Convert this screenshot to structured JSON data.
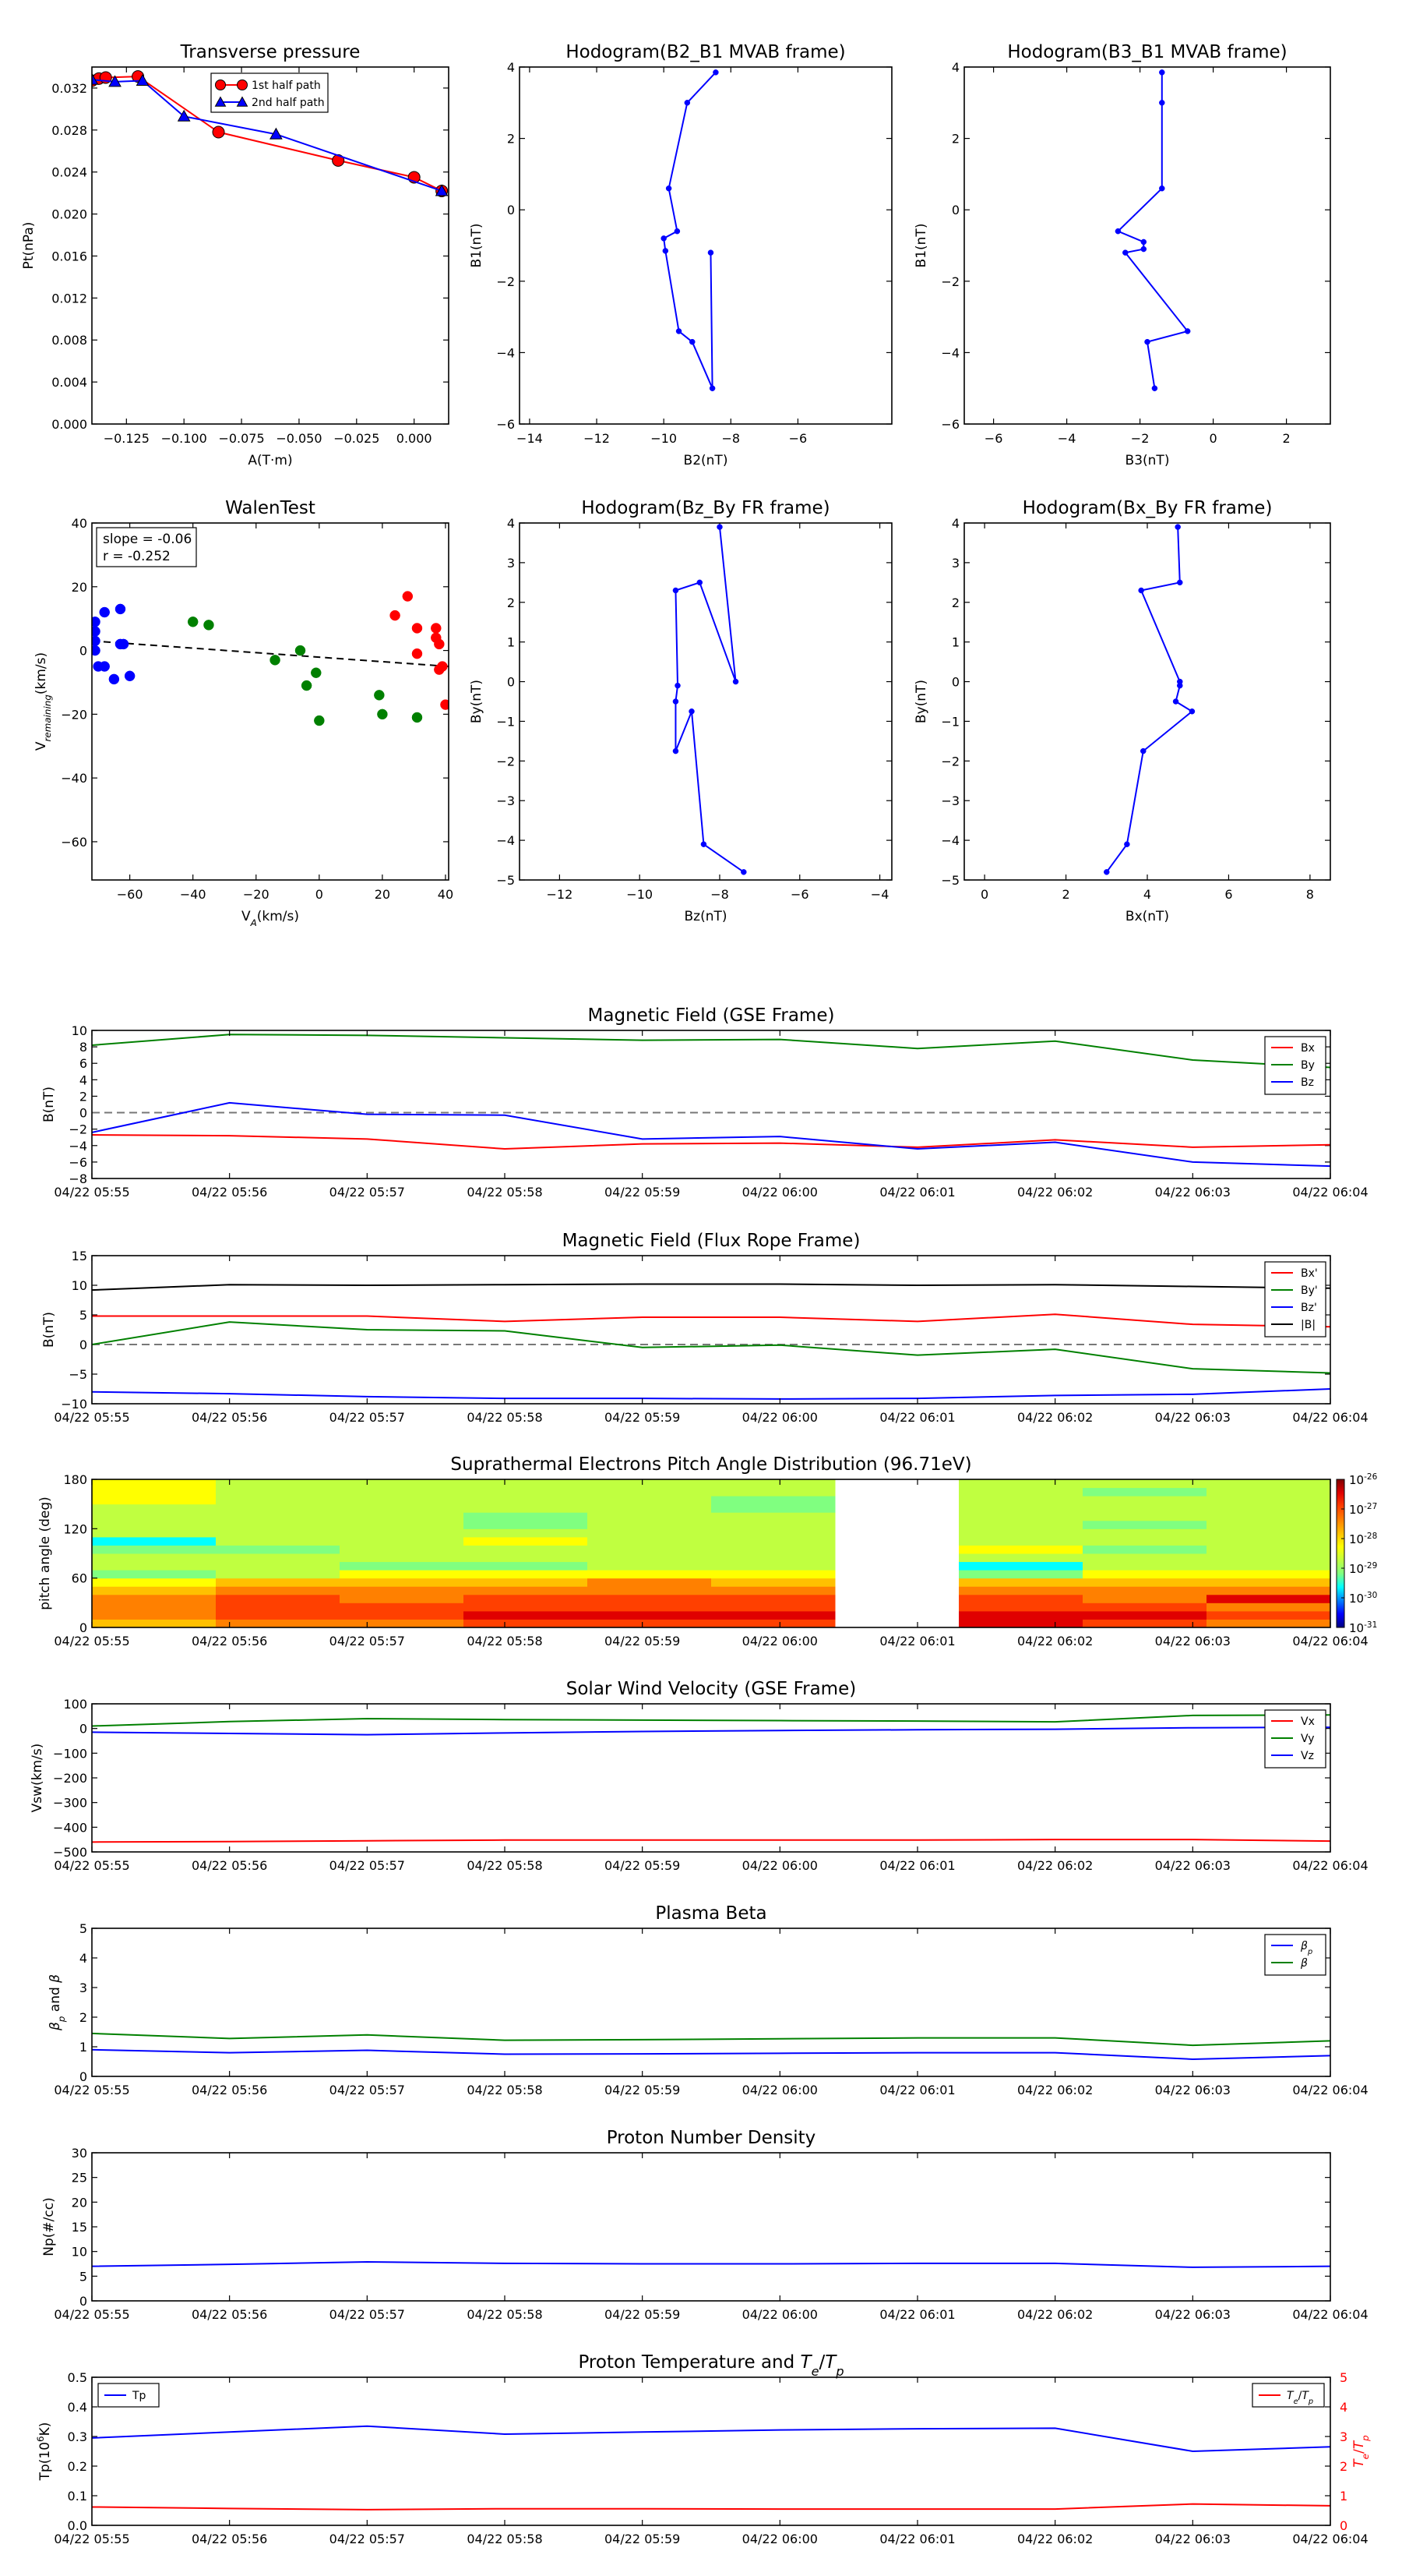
{
  "chart_data": [
    {
      "id": "transverse_pressure",
      "type": "line",
      "title": "Transverse pressure",
      "xlabel": "A(T·m)",
      "ylabel": "Pt(nPa)",
      "xlim": [
        -0.14,
        0.015
      ],
      "ylim": [
        0,
        0.034
      ],
      "xticks": [
        -0.125,
        -0.1,
        -0.075,
        -0.05,
        -0.025,
        0.0
      ],
      "xtick_labels": [
        "−0.125",
        "−0.100",
        "−0.075",
        "−0.050",
        "−0.025",
        "0.000"
      ],
      "yticks": [
        0,
        0.004,
        0.008,
        0.012,
        0.016,
        0.02,
        0.024,
        0.028,
        0.032
      ],
      "ytick_labels": [
        "0.000",
        "0.004",
        "0.008",
        "0.012",
        "0.016",
        "0.020",
        "0.024",
        "0.028",
        "0.032"
      ],
      "legend_position": "top-center",
      "series": [
        {
          "name": "1st half path",
          "color": "#ff0000",
          "marker": "circle",
          "x": [
            -0.14,
            -0.137,
            -0.134,
            -0.12,
            -0.085,
            -0.033,
            0.0,
            0.012
          ],
          "y": [
            0.0327,
            0.0329,
            0.033,
            0.0331,
            0.0278,
            0.0251,
            0.0235,
            0.0222
          ]
        },
        {
          "name": "2nd half path",
          "color": "#0000ff",
          "marker": "triangle",
          "x": [
            -0.14,
            -0.13,
            -0.118,
            -0.1,
            -0.06,
            0.012
          ],
          "y": [
            0.0328,
            0.0326,
            0.0327,
            0.0293,
            0.0276,
            0.0222
          ]
        }
      ]
    },
    {
      "id": "hodogram_b2_b1",
      "type": "line",
      "title": "Hodogram(B2_B1 MVAB frame)",
      "xlabel": "B2(nT)",
      "ylabel": "B1(nT)",
      "xlim": [
        -14.3,
        -3.2
      ],
      "ylim": [
        -6,
        4
      ],
      "xticks": [
        -14,
        -12,
        -10,
        -8,
        -6
      ],
      "yticks": [
        -6,
        -4,
        -2,
        0,
        2,
        4
      ],
      "series": [
        {
          "color": "#0000ff",
          "x": [
            -8.45,
            -9.3,
            -9.85,
            -9.6,
            -10.0,
            -9.95,
            -9.55,
            -9.15,
            -8.55,
            -8.6
          ],
          "y": [
            3.85,
            3.0,
            0.6,
            -0.6,
            -0.8,
            -1.15,
            -3.4,
            -3.7,
            -5.0,
            -1.2
          ]
        }
      ]
    },
    {
      "id": "hodogram_b3_b1",
      "type": "line",
      "title": "Hodogram(B3_B1 MVAB frame)",
      "xlabel": "B3(nT)",
      "ylabel": "B1(nT)",
      "xlim": [
        -6.8,
        3.2
      ],
      "ylim": [
        -6,
        4
      ],
      "xticks": [
        -6,
        -4,
        -2,
        0,
        2
      ],
      "yticks": [
        -6,
        -4,
        -2,
        0,
        2,
        4
      ],
      "series": [
        {
          "color": "#0000ff",
          "x": [
            -1.4,
            -1.4,
            -1.4,
            -2.6,
            -1.9,
            -1.9,
            -2.4,
            -0.7,
            -1.8,
            -1.6
          ],
          "y": [
            3.85,
            3.0,
            0.6,
            -0.6,
            -0.9,
            -1.1,
            -1.2,
            -3.4,
            -3.7,
            -5.0
          ]
        }
      ]
    },
    {
      "id": "walen_test",
      "type": "scatter",
      "title": "WalenTest",
      "xlabel": "V_A(km/s)",
      "ylabel": "V_remaining(km/s)",
      "xlim": [
        -72,
        41
      ],
      "ylim": [
        -72,
        40
      ],
      "xticks": [
        -60,
        -40,
        -20,
        0,
        20,
        40
      ],
      "yticks": [
        -60,
        -40,
        -20,
        0,
        20,
        40
      ],
      "annotation": [
        "slope = -0.06",
        "r = -0.252"
      ],
      "fit_line": {
        "style": "dashed",
        "color": "#000000",
        "x": [
          -72,
          41
        ],
        "y": [
          3.0,
          -5.0
        ]
      },
      "series": [
        {
          "color": "#0000ff",
          "x": [
            -71,
            -71,
            -71,
            -71,
            -70,
            -68,
            -65,
            -63,
            -62,
            -60,
            -68,
            -63
          ],
          "y": [
            9,
            6,
            3,
            0,
            -5,
            12,
            -9,
            13,
            2,
            -8,
            -5,
            2
          ]
        },
        {
          "color": "#008000",
          "x": [
            -40,
            -35,
            -14,
            -6,
            -4,
            -1,
            0,
            19,
            20,
            31
          ],
          "y": [
            9,
            8,
            -3,
            0,
            -11,
            -7,
            -22,
            -14,
            -20,
            -21
          ]
        },
        {
          "color": "#ff0000",
          "x": [
            24,
            28,
            31,
            31,
            37,
            37,
            38,
            38,
            39,
            40
          ],
          "y": [
            11,
            17,
            7,
            -1,
            7,
            4,
            2,
            -6,
            -5,
            -17
          ]
        }
      ]
    },
    {
      "id": "hodogram_bz_by",
      "type": "line",
      "title": "Hodogram(Bz_By FR frame)",
      "xlabel": "Bz(nT)",
      "ylabel": "By(nT)",
      "xlim": [
        -13,
        -3.7
      ],
      "ylim": [
        -5,
        4
      ],
      "xticks": [
        -12,
        -10,
        -8,
        -6,
        -4
      ],
      "yticks": [
        -5,
        -4,
        -3,
        -2,
        -1,
        0,
        1,
        2,
        3,
        4
      ],
      "series": [
        {
          "color": "#0000ff",
          "x": [
            -8,
            -7.6,
            -8.5,
            -9.1,
            -9.05,
            -9.1,
            -9.1,
            -8.7,
            -8.4,
            -7.4
          ],
          "y": [
            3.9,
            0.0,
            2.5,
            2.3,
            -0.1,
            -0.5,
            -1.75,
            -0.75,
            -4.1,
            -4.8
          ]
        }
      ]
    },
    {
      "id": "hodogram_bx_by",
      "type": "line",
      "title": "Hodogram(Bx_By FR frame)",
      "xlabel": "Bx(nT)",
      "ylabel": "By(nT)",
      "xlim": [
        -0.5,
        8.5
      ],
      "ylim": [
        -5,
        4
      ],
      "xticks": [
        0,
        2,
        4,
        6,
        8
      ],
      "yticks": [
        -5,
        -4,
        -3,
        -2,
        -1,
        0,
        1,
        2,
        3,
        4
      ],
      "series": [
        {
          "color": "#0000ff",
          "x": [
            4.75,
            4.8,
            3.85,
            4.8,
            4.8,
            4.7,
            5.1,
            3.9,
            3.5,
            3.0
          ],
          "y": [
            3.9,
            2.5,
            2.3,
            0.0,
            -0.1,
            -0.5,
            -0.75,
            -1.75,
            -4.1,
            -4.8
          ]
        }
      ]
    },
    {
      "id": "mag_gse",
      "type": "line",
      "title": "Magnetic Field (GSE Frame)",
      "xlabel": "",
      "ylabel": "B(nT)",
      "ylim": [
        -8,
        10
      ],
      "yticks": [
        -8,
        -6,
        -4,
        -2,
        0,
        2,
        4,
        6,
        8,
        10
      ],
      "zero_line": true,
      "legend_position": "top-right",
      "series": [
        {
          "name": "Bx",
          "color": "#ff0000",
          "values": [
            -2.7,
            -2.8,
            -3.2,
            -4.4,
            -3.8,
            -3.7,
            -4.2,
            -3.3,
            -4.2,
            -3.9
          ]
        },
        {
          "name": "By",
          "color": "#008000",
          "values": [
            8.2,
            9.5,
            9.4,
            9.1,
            8.8,
            8.9,
            7.8,
            8.7,
            6.4,
            5.5
          ]
        },
        {
          "name": "Bz",
          "color": "#0000ff",
          "values": [
            -2.4,
            1.2,
            -0.2,
            -0.3,
            -3.2,
            -2.9,
            -4.4,
            -3.6,
            -6.0,
            -6.5
          ]
        }
      ]
    },
    {
      "id": "mag_fr",
      "type": "line",
      "title": "Magnetic Field (Flux Rope Frame)",
      "xlabel": "",
      "ylabel": "B(nT)",
      "ylim": [
        -10,
        15
      ],
      "yticks": [
        -10,
        -5,
        0,
        5,
        10,
        15
      ],
      "zero_line": true,
      "legend_position": "top-right",
      "series": [
        {
          "name": "Bx'",
          "color": "#ff0000",
          "values": [
            4.8,
            4.8,
            4.8,
            3.9,
            4.6,
            4.6,
            3.9,
            5.1,
            3.4,
            3.0
          ]
        },
        {
          "name": "By'",
          "color": "#008000",
          "values": [
            0.0,
            3.8,
            2.5,
            2.3,
            -0.5,
            -0.1,
            -1.8,
            -0.8,
            -4.1,
            -4.8
          ]
        },
        {
          "name": "Bz'",
          "color": "#0000ff",
          "values": [
            -8.0,
            -8.3,
            -8.8,
            -9.1,
            -9.1,
            -9.2,
            -9.1,
            -8.6,
            -8.4,
            -7.5
          ]
        },
        {
          "name": "|B|",
          "color": "#000000",
          "values": [
            9.2,
            10.1,
            10.0,
            10.1,
            10.2,
            10.2,
            10.0,
            10.1,
            9.8,
            9.5
          ]
        }
      ]
    },
    {
      "id": "pad",
      "type": "heatmap",
      "title": "Suprathermal Electrons Pitch Angle Distribution (96.71eV)",
      "xlabel": "",
      "ylabel": "pitch angle (deg)",
      "ylim": [
        0,
        180
      ],
      "yticks": [
        0,
        60,
        120,
        180
      ],
      "colorbar_ticks": [
        "10^-26",
        "10^-27",
        "10^-28",
        "10^-29",
        "10^-30",
        "10^-31"
      ],
      "colorbar_scale": "log",
      "colors": [
        "#00007f",
        "#0000ff",
        "#0080ff",
        "#00ffff",
        "#80ff80",
        "#c0ff40",
        "#ffff00",
        "#ffc000",
        "#ff8000",
        "#ff4000",
        "#e00000",
        "#7f0000"
      ],
      "bins": 18,
      "columns": [
        {
          "missing": false,
          "levels": [
            7,
            8,
            8,
            8,
            7,
            6,
            4,
            5,
            5,
            4,
            3,
            5,
            5,
            5,
            5,
            6,
            6,
            6
          ]
        },
        {
          "missing": false,
          "levels": [
            8,
            9,
            9,
            9,
            8,
            7,
            5,
            5,
            5,
            4,
            5,
            5,
            5,
            5,
            5,
            5,
            5,
            5
          ]
        },
        {
          "missing": false,
          "levels": [
            8,
            9,
            9,
            8,
            8,
            7,
            6,
            4,
            5,
            5,
            5,
            5,
            5,
            5,
            5,
            5,
            5,
            5
          ]
        },
        {
          "missing": false,
          "levels": [
            9,
            10,
            9,
            9,
            8,
            7,
            6,
            4,
            5,
            5,
            6,
            5,
            4,
            4,
            5,
            5,
            5,
            5
          ]
        },
        {
          "missing": false,
          "levels": [
            9,
            10,
            9,
            9,
            8,
            8,
            6,
            5,
            5,
            5,
            5,
            5,
            5,
            5,
            5,
            5,
            5,
            5
          ]
        },
        {
          "missing": false,
          "levels": [
            9,
            10,
            9,
            9,
            8,
            7,
            6,
            5,
            5,
            5,
            5,
            5,
            5,
            5,
            4,
            4,
            5,
            5
          ]
        },
        {
          "missing": true,
          "levels": []
        },
        {
          "missing": false,
          "levels": [
            10,
            10,
            9,
            9,
            8,
            7,
            4,
            3,
            5,
            6,
            5,
            5,
            5,
            5,
            5,
            5,
            5,
            5
          ]
        },
        {
          "missing": false,
          "levels": [
            9,
            10,
            9,
            8,
            8,
            7,
            6,
            5,
            5,
            4,
            5,
            5,
            4,
            5,
            5,
            5,
            4,
            5
          ]
        },
        {
          "missing": false,
          "levels": [
            8,
            9,
            8,
            10,
            8,
            7,
            6,
            5,
            5,
            5,
            5,
            5,
            5,
            5,
            5,
            5,
            5,
            5
          ]
        }
      ]
    },
    {
      "id": "sw_velocity",
      "type": "line",
      "title": "Solar Wind Velocity (GSE Frame)",
      "xlabel": "",
      "ylabel": "Vsw(km/s)",
      "ylim": [
        -500,
        100
      ],
      "yticks": [
        -500,
        -400,
        -300,
        -200,
        -100,
        0,
        100
      ],
      "yticks_labels": [
        "−500",
        "−400",
        "−300",
        "−200",
        "−100",
        "0",
        "100"
      ],
      "legend_position": "top-right",
      "series": [
        {
          "name": "Vx",
          "color": "#ff0000",
          "values": [
            -460,
            -458,
            -455,
            -452,
            -452,
            -452,
            -452,
            -450,
            -450,
            -456
          ]
        },
        {
          "name": "Vy",
          "color": "#008000",
          "values": [
            10,
            28,
            40,
            36,
            34,
            32,
            30,
            27,
            53,
            55
          ]
        },
        {
          "name": "Vz",
          "color": "#0000ff",
          "values": [
            -15,
            -20,
            -25,
            -18,
            -12,
            -8,
            -5,
            -3,
            3,
            5
          ]
        }
      ]
    },
    {
      "id": "plasma_beta",
      "type": "line",
      "title": "Plasma Beta",
      "xlabel": "",
      "ylabel": "βp and β",
      "ylim": [
        0,
        5
      ],
      "yticks": [
        0,
        1,
        2,
        3,
        4,
        5
      ],
      "legend_position": "top-right",
      "series": [
        {
          "name": "βp",
          "color": "#0000ff",
          "values": [
            0.9,
            0.8,
            0.88,
            0.75,
            0.76,
            0.78,
            0.8,
            0.8,
            0.58,
            0.7
          ]
        },
        {
          "name": "β",
          "color": "#008000",
          "values": [
            1.45,
            1.28,
            1.4,
            1.22,
            1.24,
            1.27,
            1.3,
            1.3,
            1.05,
            1.2
          ]
        }
      ]
    },
    {
      "id": "proton_density",
      "type": "line",
      "title": "Proton Number Density",
      "xlabel": "",
      "ylabel": "Np(#/cc)",
      "ylim": [
        0,
        30
      ],
      "yticks": [
        0,
        5,
        10,
        15,
        20,
        25,
        30
      ],
      "series": [
        {
          "color": "#0000ff",
          "values": [
            7.0,
            7.4,
            7.9,
            7.6,
            7.5,
            7.5,
            7.6,
            7.6,
            6.8,
            7.0
          ]
        }
      ]
    },
    {
      "id": "proton_temp",
      "type": "line",
      "title": "Proton Temperature and Te/Tp",
      "title_parts": [
        "Proton Temperature and ",
        "T",
        "e",
        "/",
        "T",
        "p"
      ],
      "xlabel": "",
      "ylabel": "Tp(10^6K)",
      "ylabel_parts": [
        "Tp(10",
        "6",
        "K)"
      ],
      "ylim": [
        0,
        0.5
      ],
      "yticks": [
        0,
        0.1,
        0.2,
        0.3,
        0.4,
        0.5
      ],
      "ytick_labels": [
        "0.0",
        "0.1",
        "0.2",
        "0.3",
        "0.4",
        "0.5"
      ],
      "y2label": "Te/Tp",
      "y2label_parts": [
        "T",
        "e",
        "/",
        "T",
        "p"
      ],
      "y2lim": [
        0,
        5
      ],
      "y2ticks": [
        0,
        1,
        2,
        3,
        4,
        5
      ],
      "y2color": "#ff0000",
      "series": [
        {
          "name": "Tp",
          "color": "#0000ff",
          "axis": "left",
          "legend_position": "top-left",
          "values": [
            0.295,
            0.315,
            0.335,
            0.308,
            0.315,
            0.322,
            0.326,
            0.328,
            0.25,
            0.265
          ]
        },
        {
          "name": "Te/Tp",
          "color": "#ff0000",
          "axis": "right",
          "legend_position": "top-right",
          "values": [
            0.62,
            0.57,
            0.53,
            0.56,
            0.56,
            0.55,
            0.55,
            0.55,
            0.72,
            0.66
          ]
        }
      ]
    }
  ],
  "time_axis": {
    "labels": [
      "04/22 05:55",
      "04/22 05:56",
      "04/22 05:57",
      "04/22 05:58",
      "04/22 05:59",
      "04/22 06:00",
      "04/22 06:01",
      "04/22 06:02",
      "04/22 06:03",
      "04/22 06:04"
    ]
  }
}
